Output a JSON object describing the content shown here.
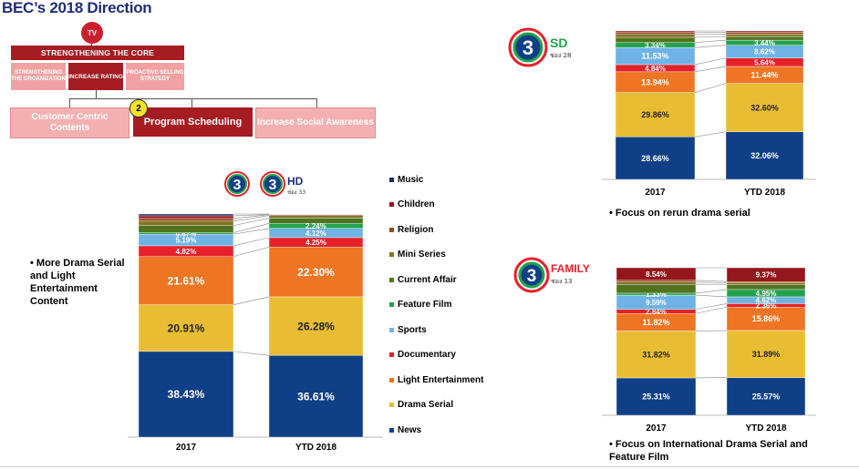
{
  "header": {
    "title": "BEC’s 2018 Direction"
  },
  "org": {
    "tv_badge": "TV",
    "core": "STRENGTHENING THE CORE",
    "sub_left": "STRENGTHENING THE ORGANIZATION",
    "sub_mid": "INCREASE RATING",
    "sub_right": "PROACTIVE SELLING STRATEGY",
    "tier_left": "Customer Centric Contents",
    "tier_mid": "Program Scheduling",
    "tier_right": "Increase Social Awareness",
    "step_badge": "2"
  },
  "logos": {
    "sd_text": "SD",
    "sd_sub": "ช่อง 28",
    "hd_text": "HD",
    "hd_sub": "ช่อง 33",
    "family_text": "FAMILY",
    "family_sub": "ช่อง 13",
    "numeral": "3"
  },
  "notes": {
    "hd_bullet": "• More Drama Serial and Light Entertainment Content",
    "sd_bullet": "•     Focus on rerun drama serial",
    "family_bullet": "•     Focus on International Drama Serial and Feature Film"
  },
  "colors": {
    "News": "#0f3f87",
    "Drama Serial": "#e9bd33",
    "Light Entertainment": "#ee7523",
    "Documentary": "#e62129",
    "Sports": "#6fb3e6",
    "Feature Film": "#23a24d",
    "Current Affair": "#517421",
    "Mini Series": "#837524",
    "Religion": "#934a1c",
    "Children": "#93171c",
    "Music": "#21285c"
  },
  "chart_data": [
    {
      "id": "hd",
      "type": "bar",
      "stacked": true,
      "categories": [
        "2017",
        "YTD 2018"
      ],
      "legend": [
        "Music",
        "Children",
        "Religion",
        "Mini Series",
        "Current Affair",
        "Feature Film",
        "Sports",
        "Documentary",
        "Light Entertainment",
        "Drama Serial",
        "News"
      ],
      "legend_position": "right",
      "series": [
        {
          "name": "News",
          "values": [
            38.43,
            36.61
          ],
          "labels": [
            "38.43%",
            "36.61%"
          ]
        },
        {
          "name": "Drama Serial",
          "values": [
            20.91,
            26.28
          ],
          "labels": [
            "20.91%",
            "26.28%"
          ]
        },
        {
          "name": "Light Entertainment",
          "values": [
            21.61,
            22.3
          ],
          "labels": [
            "21.61%",
            "22.30%"
          ]
        },
        {
          "name": "Documentary",
          "values": [
            4.82,
            4.25
          ],
          "labels": [
            "4.82%",
            "4.25%"
          ]
        },
        {
          "name": "Sports",
          "values": [
            5.19,
            4.12
          ],
          "labels": [
            "5.19%",
            "4.12%"
          ]
        },
        {
          "name": "Feature Film",
          "values": [
            0.67,
            2.24
          ],
          "labels": [
            "0.67%",
            "2.24%"
          ]
        },
        {
          "name": "Current Affair",
          "values": [
            3.2,
            2.4
          ],
          "labels": [
            "",
            ""
          ]
        },
        {
          "name": "Mini Series",
          "values": [
            2.0,
            1.1
          ],
          "labels": [
            "",
            ""
          ]
        },
        {
          "name": "Religion",
          "values": [
            1.2,
            0.4
          ],
          "labels": [
            "",
            ""
          ]
        },
        {
          "name": "Children",
          "values": [
            1.2,
            0.1
          ],
          "labels": [
            "",
            ""
          ]
        },
        {
          "name": "Music",
          "values": [
            0.8,
            0.2
          ],
          "labels": [
            "",
            ""
          ]
        }
      ],
      "ylim": [
        0,
        100
      ]
    },
    {
      "id": "sd",
      "type": "bar",
      "stacked": true,
      "categories": [
        "2017",
        "YTD 2018"
      ],
      "series": [
        {
          "name": "News",
          "values": [
            28.66,
            32.06
          ],
          "labels": [
            "28.66%",
            "32.06%"
          ]
        },
        {
          "name": "Drama Serial",
          "values": [
            29.86,
            32.6
          ],
          "labels": [
            "29.86%",
            "32.60%"
          ]
        },
        {
          "name": "Light Entertainment",
          "values": [
            13.94,
            11.44
          ],
          "labels": [
            "13.94%",
            "11.44%"
          ]
        },
        {
          "name": "Documentary",
          "values": [
            4.84,
            5.64
          ],
          "labels": [
            "4.84%",
            "5.64%"
          ]
        },
        {
          "name": "Sports",
          "values": [
            11.53,
            8.62
          ],
          "labels": [
            "11.53%",
            "8.62%"
          ]
        },
        {
          "name": "Feature Film",
          "values": [
            3.34,
            3.44
          ],
          "labels": [
            "3.34%",
            "3.44%"
          ]
        },
        {
          "name": "Current Affair",
          "values": [
            3.5,
            2.5
          ],
          "labels": [
            "",
            ""
          ]
        },
        {
          "name": "Mini Series",
          "values": [
            2.0,
            1.5
          ],
          "labels": [
            "",
            ""
          ]
        },
        {
          "name": "Religion",
          "values": [
            1.3,
            1.3
          ],
          "labels": [
            "",
            ""
          ]
        },
        {
          "name": "Children",
          "values": [
            1.0,
            0.9
          ],
          "labels": [
            "",
            ""
          ]
        },
        {
          "name": "Music",
          "values": [
            0.0,
            0.0
          ],
          "labels": [
            "",
            ""
          ]
        }
      ],
      "ylim": [
        0,
        100
      ]
    },
    {
      "id": "family",
      "type": "bar",
      "stacked": true,
      "categories": [
        "2017",
        "YTD 2018"
      ],
      "series": [
        {
          "name": "News",
          "values": [
            25.31,
            25.57
          ],
          "labels": [
            "25.31%",
            "25.57%"
          ]
        },
        {
          "name": "Drama Serial",
          "values": [
            31.82,
            31.89
          ],
          "labels": [
            "31.82%",
            "31.89%"
          ]
        },
        {
          "name": "Light Entertainment",
          "values": [
            11.82,
            15.86
          ],
          "labels": [
            "11.82%",
            "15.86%"
          ]
        },
        {
          "name": "Documentary",
          "values": [
            2.84,
            2.36
          ],
          "labels": [
            "2.84%",
            "2.36%"
          ]
        },
        {
          "name": "Sports",
          "values": [
            9.59,
            4.62
          ],
          "labels": [
            "9.59%",
            "4.62%"
          ]
        },
        {
          "name": "Feature Film",
          "values": [
            1.33,
            4.95
          ],
          "labels": [
            "1.33%",
            "4.95%"
          ]
        },
        {
          "name": "Current Affair",
          "values": [
            6.0,
            3.5
          ],
          "labels": [
            "",
            ""
          ]
        },
        {
          "name": "Mini Series",
          "values": [
            1.5,
            1.0
          ],
          "labels": [
            "",
            ""
          ]
        },
        {
          "name": "Religion",
          "values": [
            1.2,
            0.9
          ],
          "labels": [
            "",
            ""
          ]
        },
        {
          "name": "Children",
          "values": [
            8.54,
            9.37
          ],
          "labels": [
            "8.54%",
            "9.37%"
          ]
        },
        {
          "name": "Music",
          "values": [
            0.0,
            0.0
          ],
          "labels": [
            "",
            ""
          ]
        }
      ],
      "ylim": [
        0,
        100
      ]
    }
  ]
}
